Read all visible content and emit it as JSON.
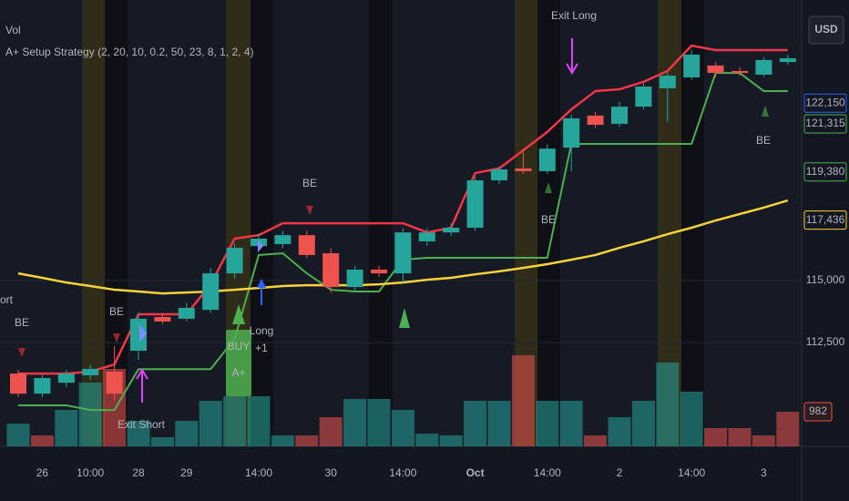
{
  "chart_data": {
    "type": "candlestick",
    "indicators": [
      "Vol",
      "A+ Setup Strategy (2, 20, 10, 0.2, 50, 23, 8, 1, 2, 4)"
    ],
    "currency": "USD",
    "categories": [
      null,
      "26",
      null,
      "10:00",
      null,
      "28",
      null,
      "29",
      null,
      null,
      "14:00",
      null,
      null,
      "30",
      null,
      null,
      "14:00",
      null,
      null,
      "Oct",
      null,
      null,
      "14:00",
      null,
      null,
      "2",
      null,
      null,
      "14:00",
      null,
      null,
      "3",
      null
    ],
    "open": [
      111250,
      110440,
      110880,
      111180,
      111330,
      112170,
      113530,
      113460,
      113820,
      115290,
      116390,
      116470,
      116830,
      116100,
      114740,
      115440,
      115290,
      116580,
      116940,
      117130,
      119040,
      119520,
      119410,
      120360,
      121650,
      121320,
      122010,
      122750,
      123190,
      123670,
      123450,
      123300,
      123810
    ],
    "high": [
      111400,
      111200,
      111400,
      111600,
      112350,
      113700,
      113700,
      114100,
      115500,
      116500,
      116900,
      117000,
      117000,
      116300,
      115600,
      115600,
      117100,
      117100,
      117300,
      119200,
      119600,
      120300,
      120500,
      121700,
      121800,
      122200,
      122950,
      123400,
      124300,
      123800,
      123600,
      124000,
      124100
    ],
    "low": [
      110300,
      110300,
      110700,
      111000,
      110150,
      111800,
      113250,
      113350,
      113700,
      115100,
      116200,
      116300,
      115900,
      114500,
      114600,
      115150,
      114900,
      116400,
      116800,
      117000,
      118900,
      119300,
      119300,
      119400,
      121150,
      121200,
      121900,
      121400,
      123100,
      123200,
      123250,
      123200,
      123700
    ],
    "close": [
      110440,
      111070,
      111250,
      111440,
      110440,
      113460,
      113350,
      113900,
      115290,
      116320,
      116690,
      116830,
      116030,
      114740,
      115440,
      115290,
      116940,
      116940,
      117130,
      119040,
      119480,
      119410,
      120320,
      121540,
      121280,
      122010,
      122820,
      123260,
      124110,
      123370,
      123370,
      123890,
      123960
    ],
    "up_color": "#26a69a",
    "down_color": "#ef5350",
    "series": [
      {
        "color": "#f23645",
        "values": [
          111250,
          111250,
          111250,
          111330,
          111620,
          113640,
          113640,
          113640,
          114850,
          116690,
          116830,
          117310,
          117310,
          117310,
          117310,
          117310,
          117310,
          116940,
          117130,
          119330,
          119520,
          120250,
          120990,
          121900,
          122640,
          122710,
          123010,
          123450,
          124470,
          124290,
          124290,
          124290,
          124290
        ]
      },
      {
        "color": "#4caf50",
        "values": [
          109970,
          109970,
          109970,
          109780,
          109780,
          111430,
          111430,
          111430,
          111430,
          112650,
          116030,
          116100,
          115290,
          114630,
          114560,
          114560,
          115840,
          115920,
          115920,
          115920,
          115920,
          115920,
          115920,
          120510,
          120510,
          120510,
          120510,
          120510,
          120510,
          123370,
          123370,
          122640,
          122640
        ]
      },
      {
        "color": "#f7d23a",
        "values": [
          115290,
          115110,
          114920,
          114780,
          114630,
          114560,
          114480,
          114520,
          114560,
          114630,
          114700,
          114780,
          114810,
          114810,
          114810,
          114850,
          114920,
          115030,
          115110,
          115250,
          115370,
          115510,
          115660,
          115840,
          116030,
          116320,
          116580,
          116870,
          117130,
          117420,
          117680,
          117940,
          118230
        ]
      },
      {
        "axis": "y2",
        "values": [
          646,
          310,
          1034,
          1809,
          2197,
          724,
          258,
          724,
          1292,
          1421,
          1421,
          310,
          310,
          827,
          1344,
          1344,
          1034,
          362,
          310,
          1292,
          1292,
          2584,
          1292,
          1292,
          310,
          827,
          1292,
          2377,
          1550,
          517,
          517,
          310,
          982
        ],
        "colors": [
          "#26a69a",
          "#ef5350",
          "#26a69a",
          "#26a69a",
          "#ef5350",
          "#26a69a",
          "#26a69a",
          "#26a69a",
          "#26a69a",
          "#26a69a",
          "#26a69a",
          "#26a69a",
          "#ef5350",
          "#ef5350",
          "#26a69a",
          "#26a69a",
          "#26a69a",
          "#26a69a",
          "#26a69a",
          "#26a69a",
          "#26a69a",
          "#ef5350",
          "#26a69a",
          "#26a69a",
          "#ef5350",
          "#26a69a",
          "#26a69a",
          "#26a69a",
          "#26a69a",
          "#ef5350",
          "#ef5350",
          "#ef5350",
          "#ef5350"
        ]
      }
    ],
    "ylim": [
      108390,
      126310
    ],
    "yticks": [
      {
        "value": 112500,
        "label": "112,500"
      },
      {
        "value": 115000,
        "label": "115,000"
      }
    ],
    "y2lim": [
      0,
      12660
    ],
    "y2ticks": [
      982
    ],
    "price_tags": [
      {
        "value": 122150,
        "label": "122,150",
        "color": "#2962ff"
      },
      {
        "value": 121315,
        "label": "121,315",
        "color": "#4caf50"
      },
      {
        "value": 119380,
        "label": "119,380",
        "color": "#4caf50"
      },
      {
        "value": 117436,
        "label": "117,436",
        "color": "#f7d23a"
      }
    ],
    "grid": true,
    "annotations": [
      "Exit Long",
      "Exit Short",
      "Long",
      "+1",
      "BUY",
      "A+",
      "BE",
      "BE",
      "BE",
      "BE",
      "BE",
      "ort"
    ]
  }
}
